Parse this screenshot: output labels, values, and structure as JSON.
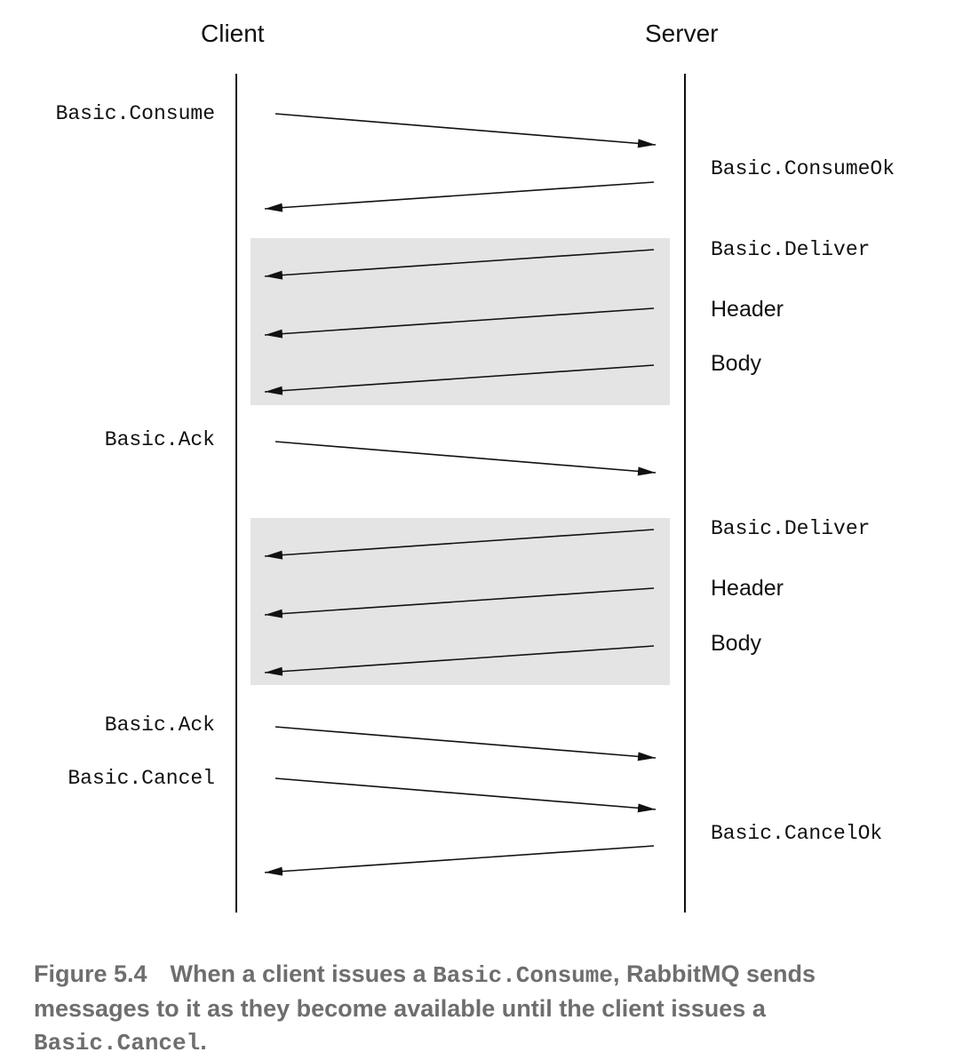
{
  "diagram": {
    "left_header": "Client",
    "right_header": "Server",
    "client_messages": {
      "consume": "Basic.Consume",
      "ack_1": "Basic.Ack",
      "ack_2": "Basic.Ack",
      "cancel": "Basic.Cancel"
    },
    "server_messages": {
      "consume_ok": "Basic.ConsumeOk",
      "deliver_1": "Basic.Deliver",
      "header_1": "Header",
      "body_1": "Body",
      "deliver_2": "Basic.Deliver",
      "header_2": "Header",
      "body_2": "Body",
      "cancel_ok": "Basic.CancelOk"
    },
    "colors": {
      "lifeline": "#111111",
      "arrow": "#111111",
      "delivery_box": "#e4e4e4",
      "caption": "#6d6e70"
    }
  },
  "caption": {
    "figure_number": "Figure 5.4",
    "text_1": "When a client issues a ",
    "code_1": "Basic.Consume",
    "text_2": ", RabbitMQ sends messages to it as they become available until the client issues a ",
    "code_2": "Basic.Cancel",
    "text_3": "."
  }
}
